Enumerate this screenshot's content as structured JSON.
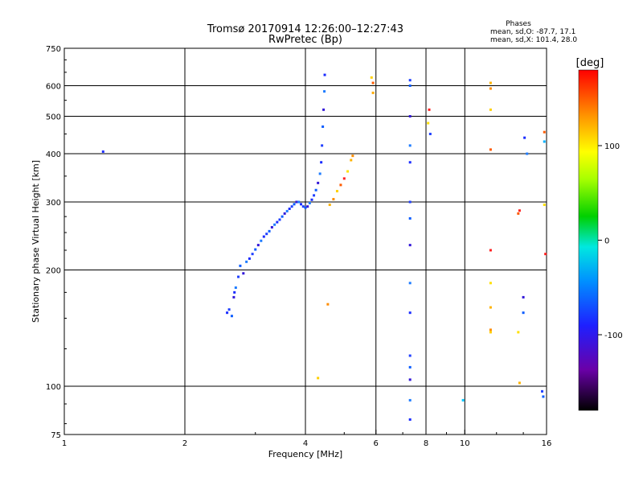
{
  "header": {
    "title_line1": "Tromsø 20170914 12:26:00–12:27:43",
    "title_line2": "RwPretec (Bp)"
  },
  "stats": {
    "heading": "Phases",
    "line_o": "mean, sd,O: -87.7, 17.1",
    "line_x": "mean, sd,X: 101.4, 28.0"
  },
  "chart_data": {
    "type": "scatter",
    "xlabel": "Frequency [MHz]",
    "ylabel": "Stationary phase Virtual Height [km]",
    "x_scale": "log",
    "y_scale": "log",
    "xlim": [
      1,
      16
    ],
    "ylim": [
      75,
      750
    ],
    "x_ticks": [
      {
        "v": 1,
        "label": "1"
      },
      {
        "v": 2,
        "label": "2"
      },
      {
        "v": 4,
        "label": "4"
      },
      {
        "v": 6,
        "label": "6"
      },
      {
        "v": 8,
        "label": "8"
      },
      {
        "v": 10,
        "label": "10"
      },
      {
        "v": 16,
        "label": "16"
      }
    ],
    "y_ticks": [
      {
        "v": 75,
        "label": "75"
      },
      {
        "v": 100,
        "label": "100"
      },
      {
        "v": 200,
        "label": "200"
      },
      {
        "v": 300,
        "label": "300"
      },
      {
        "v": 400,
        "label": "400"
      },
      {
        "v": 500,
        "label": "500"
      },
      {
        "v": 600,
        "label": "600"
      },
      {
        "v": 750,
        "label": "750"
      }
    ],
    "x_gridlines": [
      2,
      4,
      6,
      8,
      10
    ],
    "y_gridlines": [
      100,
      200,
      300,
      400,
      500,
      600
    ],
    "grid": true,
    "colorbar": {
      "label": "[deg]",
      "range": [
        -180,
        180
      ],
      "ticks": [
        {
          "v": 100,
          "label": "100"
        },
        {
          "v": 0,
          "label": "0"
        },
        {
          "v": -100,
          "label": "-100"
        }
      ]
    },
    "trace_o_points": [
      [
        2.55,
        155
      ],
      [
        2.58,
        158
      ],
      [
        2.62,
        152
      ],
      [
        2.65,
        170
      ],
      [
        2.68,
        180
      ],
      [
        2.66,
        175
      ],
      [
        2.72,
        192
      ],
      [
        2.75,
        205
      ],
      [
        2.8,
        196
      ],
      [
        2.85,
        210
      ],
      [
        2.9,
        214
      ],
      [
        2.95,
        220
      ],
      [
        3.0,
        226
      ],
      [
        3.05,
        232
      ],
      [
        3.1,
        238
      ],
      [
        3.15,
        244
      ],
      [
        3.2,
        248
      ],
      [
        3.25,
        252
      ],
      [
        3.3,
        258
      ],
      [
        3.35,
        262
      ],
      [
        3.4,
        266
      ],
      [
        3.45,
        270
      ],
      [
        3.5,
        275
      ],
      [
        3.55,
        280
      ],
      [
        3.6,
        284
      ],
      [
        3.65,
        288
      ],
      [
        3.7,
        292
      ],
      [
        3.75,
        296
      ],
      [
        3.8,
        300
      ],
      [
        3.85,
        300
      ],
      [
        3.9,
        296
      ],
      [
        3.95,
        292
      ],
      [
        4.0,
        290
      ],
      [
        4.05,
        292
      ],
      [
        4.1,
        298
      ],
      [
        4.15,
        304
      ],
      [
        4.2,
        312
      ],
      [
        4.25,
        322
      ],
      [
        4.3,
        336
      ],
      [
        4.35,
        355
      ],
      [
        4.38,
        380
      ],
      [
        4.4,
        420
      ],
      [
        4.42,
        470
      ],
      [
        4.44,
        520
      ],
      [
        4.46,
        580
      ],
      [
        4.47,
        640
      ],
      [
        7.3,
        620
      ],
      [
        7.3,
        600
      ],
      [
        7.3,
        500
      ],
      [
        7.3,
        420
      ],
      [
        7.3,
        380
      ],
      [
        7.3,
        300
      ],
      [
        7.3,
        272
      ],
      [
        7.3,
        232
      ],
      [
        7.3,
        185
      ],
      [
        7.3,
        155
      ],
      [
        7.3,
        120
      ],
      [
        7.3,
        112
      ],
      [
        7.3,
        104
      ],
      [
        7.3,
        92
      ],
      [
        7.3,
        82
      ],
      [
        8.2,
        450
      ],
      [
        14.0,
        155
      ],
      [
        14.0,
        170
      ],
      [
        14.3,
        400
      ],
      [
        14.1,
        440
      ],
      [
        15.6,
        97
      ],
      [
        15.7,
        94
      ]
    ],
    "trace_x_points": [
      [
        4.6,
        295
      ],
      [
        4.7,
        305
      ],
      [
        4.8,
        320
      ],
      [
        4.9,
        332
      ],
      [
        5.0,
        345
      ],
      [
        5.1,
        360
      ],
      [
        5.2,
        385
      ],
      [
        5.25,
        395
      ],
      [
        5.85,
        630
      ],
      [
        5.9,
        610
      ],
      [
        8.15,
        520
      ],
      [
        8.1,
        480
      ],
      [
        11.6,
        610
      ],
      [
        11.6,
        590
      ],
      [
        11.6,
        520
      ],
      [
        11.6,
        410
      ],
      [
        11.6,
        225
      ],
      [
        11.6,
        185
      ],
      [
        11.6,
        160
      ],
      [
        11.6,
        140
      ],
      [
        11.6,
        138
      ],
      [
        13.6,
        280
      ],
      [
        13.7,
        285
      ],
      [
        13.6,
        138
      ],
      [
        13.7,
        102
      ],
      [
        4.55,
        163
      ],
      [
        4.3,
        105
      ],
      [
        15.8,
        455
      ],
      [
        15.9,
        220
      ],
      [
        15.8,
        295
      ]
    ],
    "scattered_points": [
      [
        1.25,
        405
      ],
      [
        5.9,
        575
      ],
      [
        9.9,
        92
      ],
      [
        15.8,
        430
      ]
    ]
  }
}
